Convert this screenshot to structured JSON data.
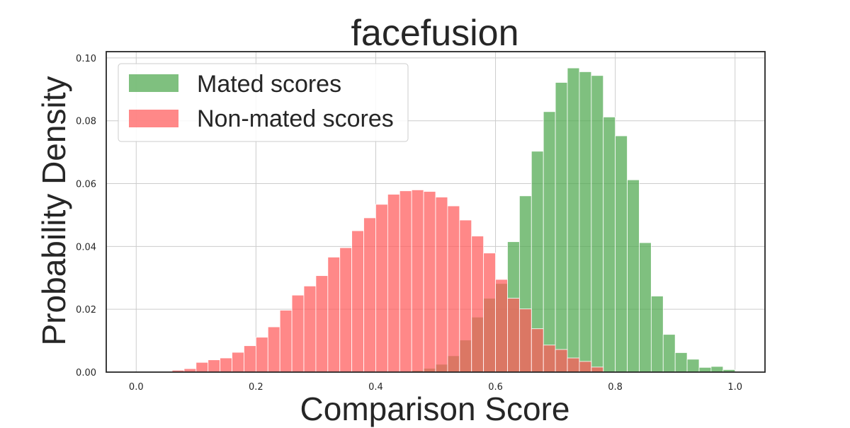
{
  "chart_data": {
    "type": "bar",
    "title": "facefusion",
    "xlabel": "Comparison Score",
    "ylabel": "Probability Density",
    "xlim": [
      -0.05,
      1.05
    ],
    "ylim": [
      0,
      0.102
    ],
    "xticks": [
      "0.0",
      "0.2",
      "0.4",
      "0.6",
      "0.8",
      "1.0"
    ],
    "yticks": [
      "0.00",
      "0.02",
      "0.04",
      "0.06",
      "0.08",
      "0.10"
    ],
    "grid": true,
    "legend_position": "top-left",
    "bin_width": 0.02,
    "series": [
      {
        "name": "Mated scores",
        "color": "#4ea84e",
        "bin_starts": [
          0.44,
          0.46,
          0.48,
          0.5,
          0.52,
          0.54,
          0.56,
          0.58,
          0.6,
          0.62,
          0.64,
          0.66,
          0.68,
          0.7,
          0.72,
          0.74,
          0.76,
          0.78,
          0.8,
          0.82,
          0.84,
          0.86,
          0.88,
          0.9,
          0.92,
          0.94,
          0.96,
          0.98
        ],
        "values": [
          0.0002,
          0.0005,
          0.0012,
          0.0025,
          0.0052,
          0.0102,
          0.0175,
          0.0235,
          0.0282,
          0.0415,
          0.0561,
          0.0703,
          0.0829,
          0.0922,
          0.0968,
          0.0956,
          0.0944,
          0.0812,
          0.0752,
          0.0612,
          0.0412,
          0.0242,
          0.012,
          0.0062,
          0.0041,
          0.0015,
          0.0018,
          0.0008
        ]
      },
      {
        "name": "Non-mated scores",
        "color": "#ff5a5a",
        "bin_starts": [
          0.02,
          0.04,
          0.06,
          0.08,
          0.1,
          0.12,
          0.14,
          0.16,
          0.18,
          0.2,
          0.22,
          0.24,
          0.26,
          0.28,
          0.3,
          0.32,
          0.34,
          0.36,
          0.38,
          0.4,
          0.42,
          0.44,
          0.46,
          0.48,
          0.5,
          0.52,
          0.54,
          0.56,
          0.58,
          0.6,
          0.62,
          0.64,
          0.66,
          0.68,
          0.7,
          0.72,
          0.74,
          0.76
        ],
        "values": [
          0.0001,
          0.0002,
          0.0006,
          0.0011,
          0.0031,
          0.0039,
          0.0045,
          0.0063,
          0.0084,
          0.0111,
          0.0144,
          0.0197,
          0.0245,
          0.0274,
          0.0307,
          0.0366,
          0.0396,
          0.045,
          0.0491,
          0.0534,
          0.0566,
          0.0577,
          0.058,
          0.0575,
          0.0557,
          0.0529,
          0.0484,
          0.0433,
          0.0379,
          0.0295,
          0.0235,
          0.0201,
          0.0138,
          0.0086,
          0.0072,
          0.0045,
          0.0034,
          0.0016
        ]
      }
    ]
  }
}
